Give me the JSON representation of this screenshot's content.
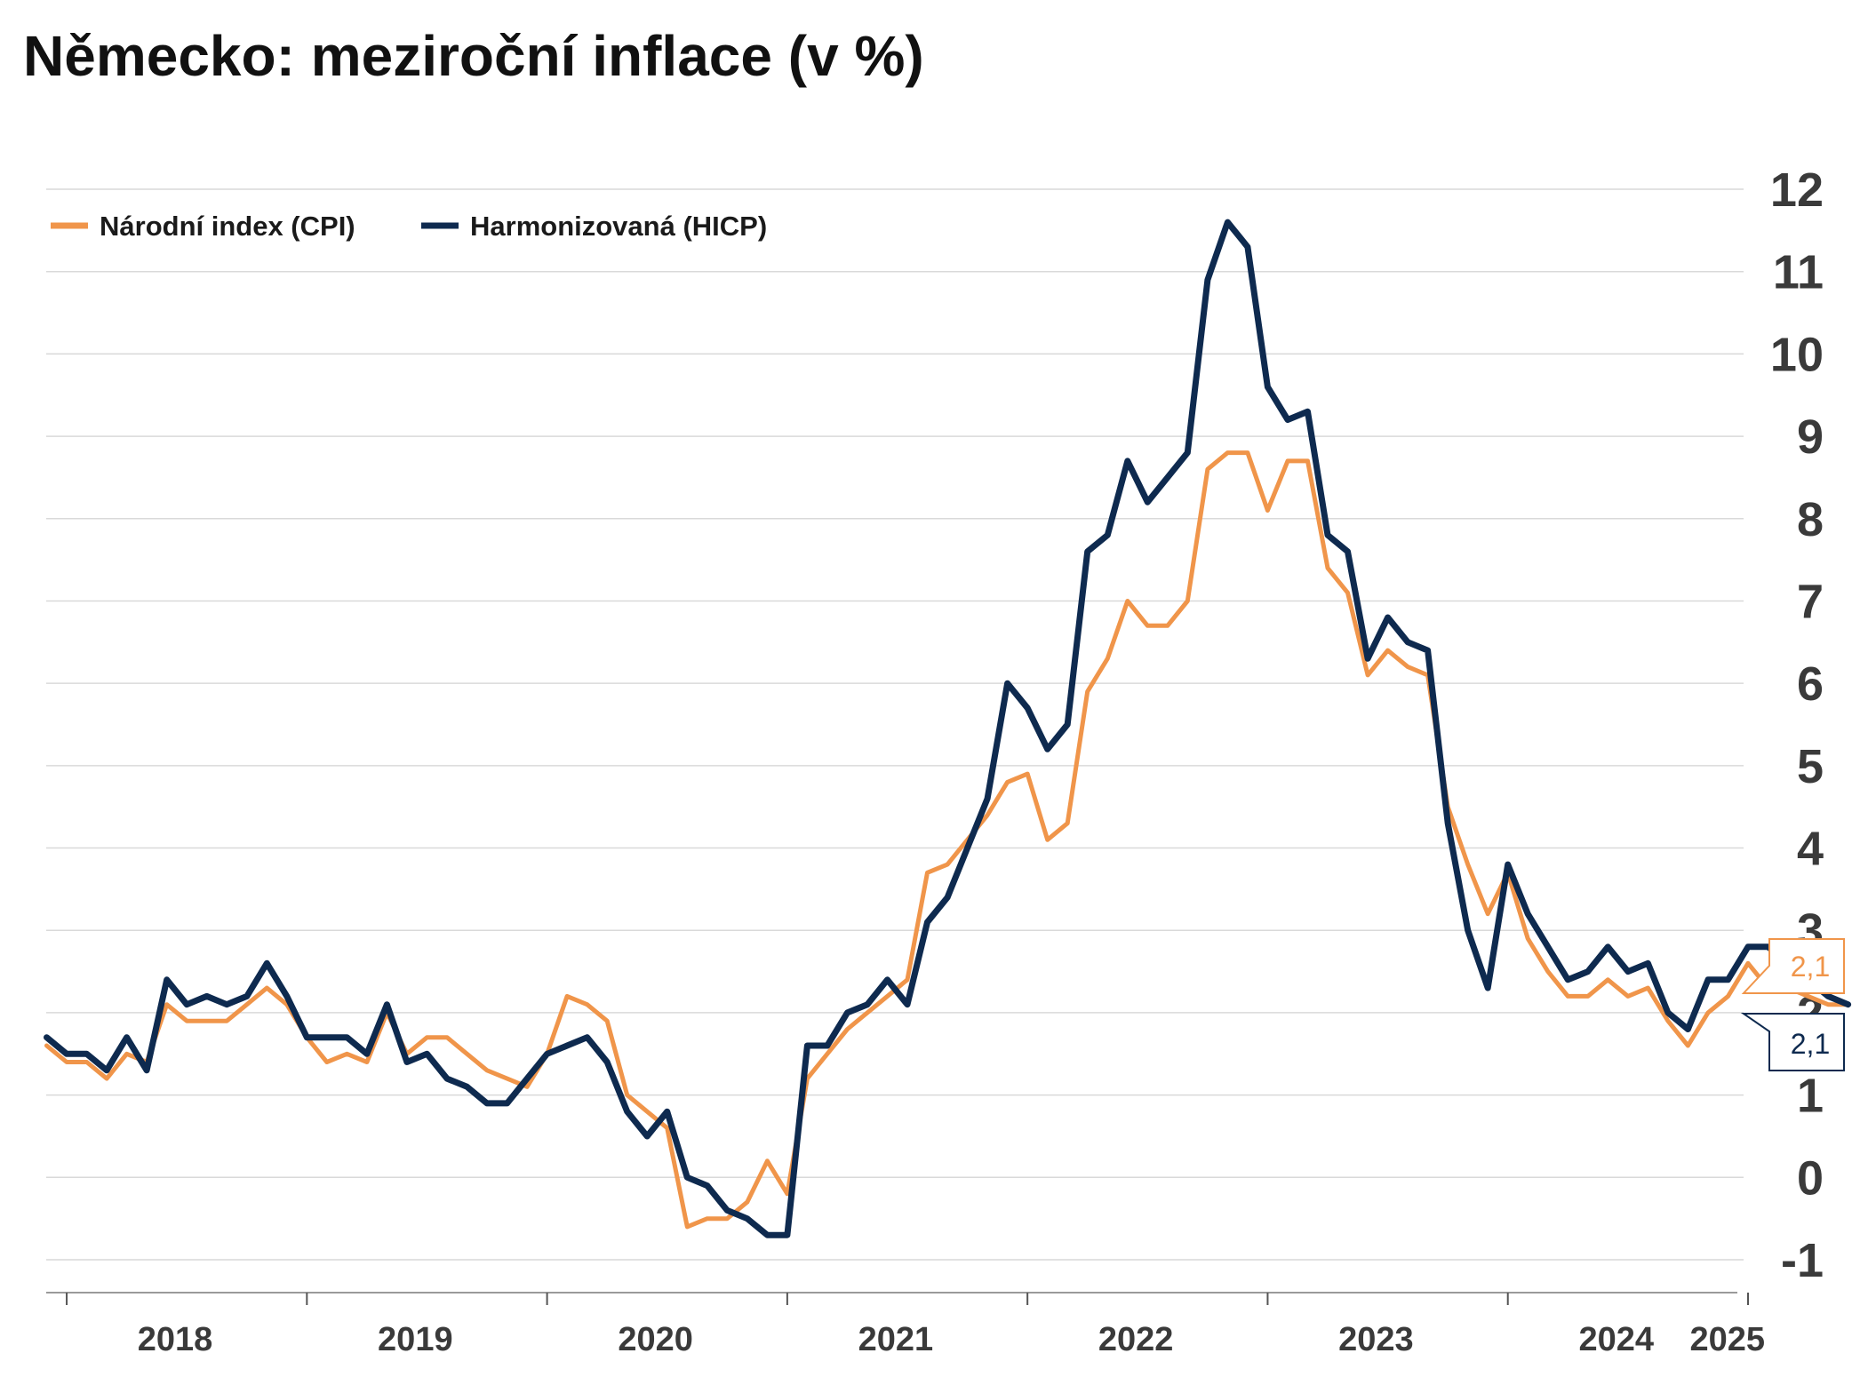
{
  "title": "Německo: meziroční inflace (v %)",
  "colors": {
    "cpi": "#F0954A",
    "hicp": "#0E2A4F",
    "grid": "#d9d9d9",
    "axis": "#9a9a9a",
    "text": "#3a3a3a"
  },
  "chart_data": {
    "type": "line",
    "title": "Německo: meziroční inflace (v %)",
    "xlabel": "",
    "ylabel": "",
    "ylim": [
      -1,
      12
    ],
    "xlim": [
      "2017-11",
      "2025-01"
    ],
    "yticks": [
      -1,
      0,
      1,
      2,
      3,
      4,
      5,
      6,
      7,
      8,
      9,
      10,
      11,
      12
    ],
    "xticks": [
      "2018",
      "2019",
      "2020",
      "2021",
      "2022",
      "2023",
      "2024",
      "2025"
    ],
    "x_start": "2017-12",
    "x_frequency": "monthly",
    "grid": true,
    "y_axis_position": "right",
    "legend_position": "top-left",
    "series": [
      {
        "name": "Národní index (CPI)",
        "color": "#F0954A",
        "last_label": "2,1",
        "values": [
          1.6,
          1.4,
          1.4,
          1.2,
          1.5,
          1.4,
          2.1,
          1.9,
          1.9,
          1.9,
          2.1,
          2.3,
          2.1,
          1.7,
          1.4,
          1.5,
          1.4,
          2.0,
          1.5,
          1.7,
          1.7,
          1.5,
          1.3,
          1.2,
          1.1,
          1.5,
          2.2,
          2.1,
          1.9,
          1.0,
          0.8,
          0.6,
          -0.6,
          -0.5,
          -0.5,
          -0.3,
          0.2,
          -0.2,
          1.2,
          1.5,
          1.8,
          2.0,
          2.2,
          2.4,
          3.7,
          3.8,
          4.1,
          4.4,
          4.8,
          4.9,
          4.1,
          4.3,
          5.9,
          6.3,
          7.0,
          6.7,
          6.7,
          7.0,
          8.6,
          8.8,
          8.8,
          8.1,
          8.7,
          8.7,
          7.4,
          7.1,
          6.1,
          6.4,
          6.2,
          6.1,
          4.5,
          3.8,
          3.2,
          3.7,
          2.9,
          2.5,
          2.2,
          2.2,
          2.4,
          2.2,
          2.3,
          1.9,
          1.6,
          2.0,
          2.2,
          2.6,
          2.3,
          2.3,
          2.2,
          2.1,
          2.1
        ]
      },
      {
        "name": "Harmonizovaná (HICP)",
        "color": "#0E2A4F",
        "last_label": "2,1",
        "values": [
          1.7,
          1.5,
          1.5,
          1.3,
          1.7,
          1.3,
          2.4,
          2.1,
          2.2,
          2.1,
          2.2,
          2.6,
          2.2,
          1.7,
          1.7,
          1.7,
          1.5,
          2.1,
          1.4,
          1.5,
          1.2,
          1.1,
          0.9,
          0.9,
          1.2,
          1.5,
          1.6,
          1.7,
          1.4,
          0.8,
          0.5,
          0.8,
          0.0,
          -0.1,
          -0.4,
          -0.5,
          -0.7,
          -0.7,
          1.6,
          1.6,
          2.0,
          2.1,
          2.4,
          2.1,
          3.1,
          3.4,
          4.0,
          4.6,
          6.0,
          5.7,
          5.2,
          5.5,
          7.6,
          7.8,
          8.7,
          8.2,
          8.5,
          8.8,
          10.9,
          11.6,
          11.3,
          9.6,
          9.2,
          9.3,
          7.8,
          7.6,
          6.3,
          6.8,
          6.5,
          6.4,
          4.3,
          3.0,
          2.3,
          3.8,
          3.2,
          2.8,
          2.4,
          2.5,
          2.8,
          2.5,
          2.6,
          2.0,
          1.8,
          2.4,
          2.4,
          2.8,
          2.8,
          2.6,
          2.4,
          2.2,
          2.1
        ]
      }
    ]
  }
}
